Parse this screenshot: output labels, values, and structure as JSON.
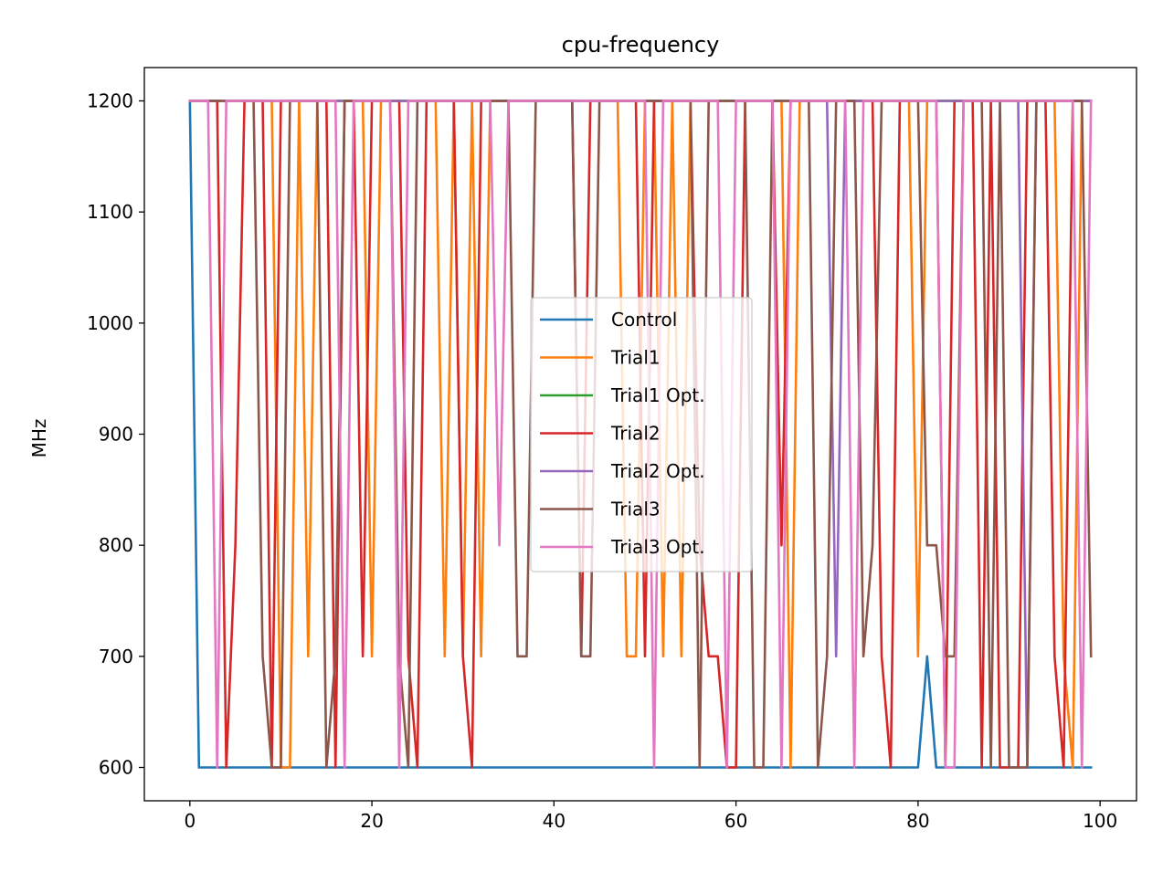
{
  "chart_data": {
    "type": "line",
    "title": "cpu-frequency",
    "xlabel": "",
    "ylabel": "MHz",
    "xlim": [
      -5,
      104
    ],
    "ylim": [
      570,
      1230
    ],
    "xticks": [
      0,
      20,
      40,
      60,
      80,
      100
    ],
    "yticks": [
      600,
      700,
      800,
      900,
      1000,
      1100,
      1200
    ],
    "grid": false,
    "legend_position": "center",
    "x": [
      0,
      1,
      2,
      3,
      4,
      5,
      6,
      7,
      8,
      9,
      10,
      11,
      12,
      13,
      14,
      15,
      16,
      17,
      18,
      19,
      20,
      21,
      22,
      23,
      24,
      25,
      26,
      27,
      28,
      29,
      30,
      31,
      32,
      33,
      34,
      35,
      36,
      37,
      38,
      39,
      40,
      41,
      42,
      43,
      44,
      45,
      46,
      47,
      48,
      49,
      50,
      51,
      52,
      53,
      54,
      55,
      56,
      57,
      58,
      59,
      60,
      61,
      62,
      63,
      64,
      65,
      66,
      67,
      68,
      69,
      70,
      71,
      72,
      73,
      74,
      75,
      76,
      77,
      78,
      79,
      80,
      81,
      82,
      83,
      84,
      85,
      86,
      87,
      88,
      89,
      90,
      91,
      92,
      93,
      94,
      95,
      96,
      97,
      98,
      99
    ],
    "series": [
      {
        "name": "Control",
        "color": "#1f77b4",
        "values": [
          1200,
          600,
          600,
          600,
          600,
          600,
          600,
          600,
          600,
          600,
          600,
          600,
          600,
          600,
          600,
          600,
          600,
          600,
          600,
          600,
          600,
          600,
          600,
          600,
          600,
          600,
          600,
          600,
          600,
          600,
          600,
          600,
          600,
          600,
          600,
          600,
          600,
          600,
          600,
          600,
          600,
          600,
          600,
          600,
          600,
          600,
          600,
          600,
          600,
          600,
          600,
          600,
          600,
          600,
          600,
          600,
          600,
          600,
          600,
          600,
          600,
          600,
          600,
          600,
          600,
          600,
          600,
          600,
          600,
          600,
          600,
          600,
          600,
          600,
          600,
          600,
          600,
          600,
          600,
          600,
          600,
          700,
          600,
          600,
          600,
          600,
          600,
          600,
          600,
          600,
          600,
          600,
          600,
          600,
          600,
          600,
          600,
          600,
          600,
          600
        ]
      },
      {
        "name": "Trial1",
        "color": "#ff7f0e",
        "values": [
          1200,
          1200,
          1200,
          1200,
          1200,
          1200,
          1200,
          1200,
          1200,
          1200,
          600,
          600,
          1200,
          700,
          1200,
          1200,
          1200,
          1200,
          1200,
          1200,
          700,
          1200,
          1200,
          1200,
          1200,
          1200,
          1200,
          1200,
          700,
          1200,
          700,
          1200,
          700,
          1200,
          1200,
          1200,
          1200,
          1200,
          1200,
          1200,
          1200,
          1200,
          1200,
          1200,
          1200,
          1200,
          1200,
          1200,
          700,
          700,
          1200,
          1200,
          700,
          1200,
          700,
          1200,
          1200,
          1200,
          1200,
          1200,
          1200,
          1200,
          1200,
          1200,
          1200,
          1200,
          600,
          1200,
          1200,
          1200,
          1200,
          1200,
          1200,
          1200,
          1200,
          1200,
          1200,
          1200,
          1200,
          1200,
          700,
          1200,
          1200,
          1200,
          1200,
          1200,
          1200,
          1200,
          1200,
          1200,
          1200,
          1200,
          1200,
          1200,
          1200,
          1200,
          700,
          600,
          1200,
          1200
        ]
      },
      {
        "name": "Trial1 Opt.",
        "color": "#2ca02c",
        "values": [
          1200,
          1200,
          1200,
          1200,
          1200,
          1200,
          1200,
          1200,
          1200,
          1200,
          1200,
          1200,
          1200,
          1200,
          1200,
          1200,
          1200,
          1200,
          1200,
          1200,
          1200,
          1200,
          1200,
          1200,
          1200,
          1200,
          1200,
          1200,
          1200,
          1200,
          1200,
          1200,
          1200,
          1200,
          1200,
          1200,
          1200,
          1200,
          1200,
          1200,
          1200,
          1200,
          1200,
          1200,
          1200,
          1200,
          1200,
          1200,
          1200,
          1200,
          1200,
          1200,
          1200,
          1200,
          1200,
          1200,
          1200,
          1200,
          1200,
          1200,
          1200,
          1200,
          1200,
          1200,
          1200,
          1200,
          1200,
          1200,
          1200,
          1200,
          1200,
          1200,
          1200,
          1200,
          1200,
          1200,
          1200,
          1200,
          1200,
          1200,
          1200,
          1200,
          1200,
          1200,
          1200,
          1200,
          1200,
          1200,
          1200,
          1200,
          1200,
          1200,
          1200,
          1200,
          1200,
          1200,
          1200,
          1200,
          1200,
          1200
        ]
      },
      {
        "name": "Trial2",
        "color": "#d62728",
        "values": [
          1200,
          1200,
          1200,
          1200,
          600,
          800,
          1200,
          1200,
          1200,
          600,
          1200,
          1200,
          1200,
          1200,
          1200,
          1200,
          600,
          1200,
          1200,
          700,
          1200,
          1200,
          1200,
          1200,
          700,
          600,
          1200,
          1200,
          1200,
          1200,
          700,
          600,
          1200,
          1200,
          1200,
          1200,
          1200,
          1200,
          1200,
          1200,
          1200,
          1200,
          1200,
          700,
          1200,
          1200,
          1200,
          1200,
          1200,
          1200,
          700,
          1200,
          1200,
          1200,
          1200,
          1200,
          800,
          700,
          700,
          600,
          600,
          1200,
          1200,
          1200,
          1200,
          800,
          1200,
          1200,
          1200,
          1200,
          1200,
          1200,
          1200,
          1200,
          1200,
          1200,
          700,
          600,
          1200,
          1200,
          1200,
          1200,
          1200,
          600,
          1200,
          1200,
          1200,
          600,
          1200,
          600,
          600,
          600,
          1200,
          1200,
          1200,
          700,
          600,
          1200,
          1200,
          1200
        ]
      },
      {
        "name": "Trial2 Opt.",
        "color": "#9467bd",
        "values": [
          1200,
          1200,
          1200,
          1200,
          1200,
          1200,
          1200,
          1200,
          1200,
          1200,
          1200,
          1200,
          1200,
          1200,
          1200,
          1200,
          1200,
          1200,
          1200,
          1200,
          1200,
          1200,
          1200,
          1200,
          1200,
          1200,
          1200,
          1200,
          1200,
          1200,
          1200,
          1200,
          1200,
          1200,
          1200,
          1200,
          1200,
          1200,
          1200,
          1200,
          1200,
          1200,
          1200,
          1200,
          1200,
          1200,
          1200,
          1200,
          1200,
          1200,
          1200,
          1200,
          1200,
          1200,
          1200,
          1200,
          1200,
          1200,
          1200,
          1200,
          1200,
          1200,
          1200,
          1200,
          1200,
          1200,
          1200,
          1200,
          1200,
          1200,
          1200,
          700,
          1200,
          1200,
          1200,
          1200,
          1200,
          1200,
          1200,
          1200,
          1200,
          1200,
          1200,
          1200,
          1200,
          1200,
          1200,
          1200,
          1200,
          1200,
          1200,
          1200,
          600,
          1200,
          1200,
          1200,
          1200,
          1200,
          1200,
          1200
        ]
      },
      {
        "name": "Trial3",
        "color": "#8c564b",
        "values": [
          1200,
          1200,
          1200,
          1200,
          1200,
          1200,
          1200,
          1200,
          700,
          600,
          600,
          1200,
          1200,
          1200,
          1200,
          600,
          700,
          1200,
          1200,
          1200,
          1200,
          1200,
          1200,
          700,
          600,
          1200,
          1200,
          1200,
          1200,
          1200,
          1200,
          1200,
          1200,
          1200,
          1200,
          1200,
          700,
          700,
          1200,
          1200,
          1200,
          1200,
          1200,
          700,
          700,
          1200,
          1200,
          1200,
          1200,
          1200,
          1200,
          1200,
          1200,
          1200,
          1200,
          1200,
          600,
          1200,
          1200,
          1200,
          1200,
          1200,
          600,
          600,
          1200,
          1200,
          1200,
          1200,
          1200,
          600,
          700,
          1200,
          1200,
          1200,
          700,
          800,
          1200,
          1200,
          1200,
          1200,
          1200,
          800,
          800,
          700,
          700,
          1200,
          1200,
          1200,
          600,
          1200,
          600,
          600,
          600,
          1200,
          1200,
          1200,
          1200,
          1200,
          1200,
          700
        ]
      },
      {
        "name": "Trial3 Opt.",
        "color": "#e377c2",
        "values": [
          1200,
          1200,
          1200,
          600,
          1200,
          1200,
          1200,
          1200,
          1200,
          1200,
          1200,
          1200,
          1200,
          1200,
          1200,
          1200,
          1200,
          600,
          1200,
          1200,
          1200,
          1200,
          1200,
          600,
          1200,
          1200,
          1200,
          1200,
          1200,
          1200,
          1200,
          1200,
          1200,
          1200,
          800,
          1200,
          1200,
          1200,
          1200,
          1200,
          1200,
          1200,
          1200,
          1200,
          1200,
          1200,
          1200,
          1200,
          1200,
          1200,
          1200,
          600,
          1200,
          1200,
          1200,
          1200,
          1200,
          1200,
          1200,
          600,
          1200,
          1200,
          1200,
          1200,
          1200,
          600,
          1200,
          1200,
          1200,
          1200,
          1200,
          1200,
          1200,
          600,
          1200,
          1200,
          1200,
          1200,
          1200,
          1200,
          1200,
          1200,
          1200,
          600,
          600,
          1200,
          1200,
          1200,
          1200,
          1200,
          1200,
          1200,
          1200,
          1200,
          1200,
          1200,
          1200,
          1200,
          600,
          1200
        ]
      }
    ]
  }
}
